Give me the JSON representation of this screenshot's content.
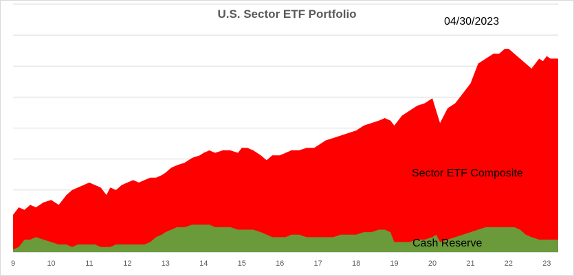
{
  "chart_data": {
    "type": "area",
    "title": "U.S. Sector ETF Portfolio",
    "date_label": "04/30/2023",
    "xlabel": "",
    "ylabel": "",
    "x_ticks": [
      "9",
      "10",
      "11",
      "12",
      "13",
      "14",
      "15",
      "16",
      "17",
      "18",
      "19",
      "20",
      "21",
      "22",
      "23"
    ],
    "xlim": [
      9,
      23.3
    ],
    "ylim": [
      0,
      100
    ],
    "grid": true,
    "colors": {
      "Sector ETF Composite": "#ff0000",
      "Cash Reserve": "#6a9a3a"
    },
    "series": [
      {
        "name": "Sector ETF Composite",
        "label_text": "Sector ETF Composite",
        "stacking": "total",
        "x": [
          9.0,
          9.15,
          9.3,
          9.45,
          9.6,
          9.8,
          10.0,
          10.2,
          10.4,
          10.55,
          10.7,
          10.85,
          11.0,
          11.15,
          11.3,
          11.45,
          11.55,
          11.7,
          11.85,
          12.0,
          12.15,
          12.3,
          12.45,
          12.6,
          12.75,
          12.9,
          13.0,
          13.15,
          13.3,
          13.5,
          13.7,
          13.9,
          14.0,
          14.15,
          14.3,
          14.5,
          14.7,
          14.9,
          15.0,
          15.15,
          15.3,
          15.5,
          15.65,
          15.8,
          16.0,
          16.15,
          16.3,
          16.5,
          16.7,
          16.9,
          17.0,
          17.2,
          17.4,
          17.6,
          17.8,
          18.0,
          18.2,
          18.4,
          18.6,
          18.75,
          18.9,
          19.0,
          19.2,
          19.4,
          19.6,
          19.8,
          20.0,
          20.1,
          20.2,
          20.4,
          20.6,
          20.8,
          21.0,
          21.2,
          21.4,
          21.6,
          21.75,
          21.9,
          22.0,
          22.15,
          22.3,
          22.45,
          22.6,
          22.8,
          22.9,
          23.0,
          23.1,
          23.3
        ],
        "values": [
          15,
          18,
          17,
          19,
          18,
          20,
          21,
          19,
          23,
          25,
          26,
          27,
          28,
          27,
          26,
          23,
          26,
          25,
          27,
          28,
          29,
          28,
          29,
          30,
          30,
          31,
          32,
          34,
          35,
          36,
          38,
          39,
          40,
          41,
          40,
          41,
          41,
          40,
          42,
          42,
          41,
          39,
          37,
          39,
          39,
          40,
          41,
          41,
          42,
          42,
          43,
          45,
          46,
          47,
          48,
          49,
          51,
          52,
          53,
          54,
          53,
          51,
          55,
          57,
          59,
          60,
          62,
          57,
          52,
          58,
          60,
          64,
          68,
          76,
          78,
          80,
          80,
          82,
          82,
          80,
          78,
          76,
          74,
          78,
          77,
          79,
          78,
          78
        ]
      },
      {
        "name": "Cash Reserve",
        "label_text": "Cash Reserve",
        "x": [
          9.0,
          9.15,
          9.3,
          9.45,
          9.6,
          9.8,
          10.0,
          10.2,
          10.4,
          10.55,
          10.7,
          10.85,
          11.0,
          11.15,
          11.3,
          11.45,
          11.55,
          11.7,
          11.85,
          12.0,
          12.15,
          12.3,
          12.45,
          12.6,
          12.75,
          12.9,
          13.0,
          13.15,
          13.3,
          13.5,
          13.7,
          13.9,
          14.0,
          14.15,
          14.3,
          14.5,
          14.7,
          14.9,
          15.0,
          15.15,
          15.3,
          15.5,
          15.65,
          15.8,
          16.0,
          16.15,
          16.3,
          16.5,
          16.7,
          16.9,
          17.0,
          17.2,
          17.4,
          17.6,
          17.8,
          18.0,
          18.2,
          18.4,
          18.6,
          18.75,
          18.9,
          19.0,
          19.2,
          19.4,
          19.6,
          19.8,
          20.0,
          20.1,
          20.2,
          20.4,
          20.6,
          20.8,
          21.0,
          21.2,
          21.4,
          21.6,
          21.75,
          21.9,
          22.0,
          22.15,
          22.3,
          22.45,
          22.6,
          22.8,
          22.9,
          23.0,
          23.1,
          23.3
        ],
        "values": [
          1,
          2,
          5,
          5,
          6,
          5,
          4,
          3,
          3,
          2,
          3,
          3,
          3,
          3,
          2,
          2,
          2,
          3,
          3,
          3,
          3,
          3,
          3,
          4,
          6,
          7,
          8,
          9,
          10,
          10,
          11,
          11,
          11,
          11,
          10,
          10,
          10,
          9,
          9,
          9,
          9,
          8,
          7,
          6,
          6,
          6,
          7,
          7,
          6,
          6,
          6,
          6,
          6,
          7,
          7,
          7,
          8,
          8,
          9,
          9,
          8,
          4,
          4,
          4,
          5,
          5,
          6,
          7,
          4,
          5,
          6,
          7,
          8,
          9,
          10,
          10,
          10,
          10,
          10,
          10,
          9,
          7,
          6,
          5,
          5,
          5,
          5,
          5
        ]
      }
    ]
  }
}
